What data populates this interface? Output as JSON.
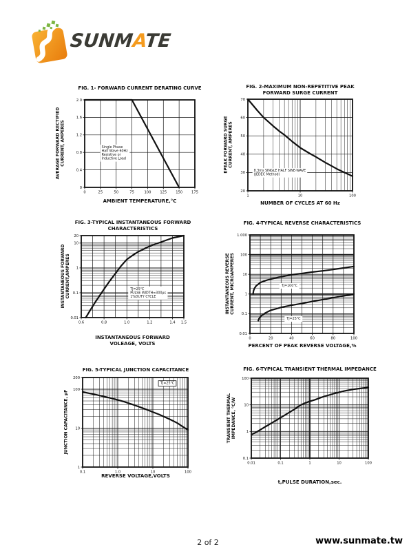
{
  "page": {
    "footer_page": "2 of 2",
    "footer_site": "www.sunmate.tw"
  },
  "logo": {
    "brand_prefix": "SUNM",
    "brand_accent": "A",
    "brand_suffix": "TE",
    "mark_gradient_start": "#F9B233",
    "mark_gradient_end": "#E87C0C",
    "dot_color": "#7DB642",
    "text_color": "#3B3B35",
    "accent_color": "#F59B1E"
  },
  "chart_data": [
    {
      "id": "fig1",
      "type": "line",
      "title": "FIG. 1- FORWARD CURRENT DERATING CURVE",
      "xlabel": "AMBIENT TEMPERATURE,°C",
      "ylabel": "AVERAGE FORWARD RECTIFIED CURRENT, AMPERES",
      "x": {
        "scale": "linear",
        "min": 0,
        "max": 175,
        "grid": [
          25,
          50,
          75,
          100,
          125,
          150
        ],
        "ticks": [
          {
            "v": 0,
            "l": "0"
          },
          {
            "v": 25,
            "l": "25"
          },
          {
            "v": 50,
            "l": "50"
          },
          {
            "v": 75,
            "l": "75"
          },
          {
            "v": 100,
            "l": "100"
          },
          {
            "v": 125,
            "l": "125"
          },
          {
            "v": 150,
            "l": "150"
          },
          {
            "v": 175,
            "l": "175"
          }
        ]
      },
      "y": {
        "scale": "linear",
        "min": 0,
        "max": 2,
        "grid": [
          0.4,
          0.8,
          1.2,
          1.6
        ],
        "ticks": [
          {
            "v": 0,
            "l": "0"
          },
          {
            "v": 0.4,
            "l": "0.4"
          },
          {
            "v": 0.8,
            "l": "0.8"
          },
          {
            "v": 1.2,
            "l": "1.2"
          },
          {
            "v": 1.6,
            "l": "1.6"
          },
          {
            "v": 2,
            "l": "2.0"
          }
        ]
      },
      "series": [
        {
          "name": "derating",
          "points": [
            [
              0,
              2
            ],
            [
              75,
              2
            ],
            [
              150,
              0
            ]
          ]
        }
      ],
      "annotations": [
        {
          "x": 27,
          "y": 0.9,
          "anchor": "start",
          "text": "Single Phase\nHalf Wave 60Hz\nResistive or\nInductive Load"
        }
      ]
    },
    {
      "id": "fig2",
      "type": "line",
      "title": "FIG. 2-MAXIMUM NON-REPETITIVE PEAK FORWARD SURGE CURRENT",
      "xlabel": "NUMBER OF CYCLES AT 60 Hz",
      "ylabel": "EPEAK FORWARD SURGE CURRENT, AMPERES",
      "x": {
        "scale": "log",
        "min": 1,
        "max": 100,
        "ticks": [
          {
            "v": 1,
            "l": "1"
          },
          {
            "v": 10,
            "l": "10"
          },
          {
            "v": 100,
            "l": "100"
          }
        ]
      },
      "y": {
        "scale": "linear",
        "min": 20,
        "max": 70,
        "grid": [
          30,
          40,
          50,
          60
        ],
        "ticks": [
          {
            "v": 20,
            "l": "20"
          },
          {
            "v": 30,
            "l": "30"
          },
          {
            "v": 40,
            "l": "40"
          },
          {
            "v": 50,
            "l": "50"
          },
          {
            "v": 60,
            "l": "60"
          },
          {
            "v": 70,
            "l": "70"
          }
        ]
      },
      "series": [
        {
          "name": "surge",
          "points": [
            [
              1,
              70
            ],
            [
              1.5,
              64
            ],
            [
              2,
              60
            ],
            [
              3,
              55.5
            ],
            [
              4,
              52.5
            ],
            [
              5,
              50.5
            ],
            [
              7,
              47
            ],
            [
              10,
              43.5
            ],
            [
              15,
              40.5
            ],
            [
              20,
              38.5
            ],
            [
              30,
              35.5
            ],
            [
              50,
              32
            ],
            [
              70,
              30
            ],
            [
              100,
              28
            ]
          ]
        }
      ],
      "annotations": [
        {
          "x": 1.3,
          "y": 30.5,
          "anchor": "start",
          "text": "8.3ms SINGLE HALF SINE-WAVE\n(JEDEC Method)"
        }
      ]
    },
    {
      "id": "fig3",
      "type": "line",
      "title": "FIG. 3-TYPICAL INSTANTANEOUS FORWARD CHARACTERISTICS",
      "xlabel": "INSTANTANEOUS FORWARD VOLEAGE, VOLTS",
      "ylabel": "INSTANTANEOUS FORWARD CURRENT,AMPERES",
      "x": {
        "scale": "linear",
        "min": 0.6,
        "max": 1.5,
        "grid": [
          0.7,
          0.8,
          0.9,
          1.0,
          1.1,
          1.2,
          1.3,
          1.4
        ],
        "ticks": [
          {
            "v": 0.6,
            "l": "0.6"
          },
          {
            "v": 0.8,
            "l": "0.8"
          },
          {
            "v": 1.0,
            "l": "1.0"
          },
          {
            "v": 1.2,
            "l": "1.2"
          },
          {
            "v": 1.4,
            "l": "1.4"
          },
          {
            "v": 1.5,
            "l": "1.5"
          }
        ]
      },
      "y": {
        "scale": "log",
        "min": 0.01,
        "max": 20,
        "ticks": [
          {
            "v": 0.01,
            "l": "0.01"
          },
          {
            "v": 0.1,
            "l": "0.1"
          },
          {
            "v": 1,
            "l": "1"
          },
          {
            "v": 10,
            "l": "10"
          },
          {
            "v": 20,
            "l": "20"
          }
        ]
      },
      "series": [
        {
          "name": "vf-if",
          "points": [
            [
              0.64,
              0.01
            ],
            [
              0.68,
              0.02
            ],
            [
              0.72,
              0.04
            ],
            [
              0.76,
              0.075
            ],
            [
              0.8,
              0.14
            ],
            [
              0.85,
              0.3
            ],
            [
              0.9,
              0.6
            ],
            [
              0.95,
              1.2
            ],
            [
              1.0,
              2.2
            ],
            [
              1.05,
              3.2
            ],
            [
              1.1,
              4.5
            ],
            [
              1.2,
              7.5
            ],
            [
              1.3,
              11
            ],
            [
              1.4,
              16
            ],
            [
              1.5,
              20
            ]
          ]
        }
      ],
      "annotations": [
        {
          "x": 1.03,
          "y": 0.13,
          "anchor": "start",
          "text": "TJ=25°C\nPULSE WIDTH=300μs\n1%DUTY CYCLE"
        }
      ]
    },
    {
      "id": "fig4",
      "type": "line",
      "title": "FIG. 4-TYPICAL REVERSE CHARACTERISTICS",
      "xlabel": "PERCENT OF PEAK REVERSE VOLTAGE,%",
      "ylabel": "INSTANTANEOUS REVERSE CURRENT, MICROAMPERES",
      "x": {
        "scale": "linear",
        "min": 0,
        "max": 100,
        "grid": [
          10,
          20,
          30,
          40,
          50,
          60,
          70,
          80,
          90
        ],
        "ticks": [
          {
            "v": 0,
            "l": "0"
          },
          {
            "v": 20,
            "l": "20"
          },
          {
            "v": 40,
            "l": "40"
          },
          {
            "v": 60,
            "l": "60"
          },
          {
            "v": 80,
            "l": "80"
          },
          {
            "v": 100,
            "l": "100"
          }
        ]
      },
      "y": {
        "scale": "log",
        "min": 0.01,
        "max": 1000,
        "emph": [
          1,
          100
        ],
        "ticks": [
          {
            "v": 0.01,
            "l": "0.01"
          },
          {
            "v": 0.1,
            "l": "0.1"
          },
          {
            "v": 1,
            "l": "1"
          },
          {
            "v": 10,
            "l": "10"
          },
          {
            "v": 100,
            "l": "100"
          },
          {
            "v": 1000,
            "l": "1.000"
          }
        ]
      },
      "series": [
        {
          "name": "TJ=100°C",
          "points": [
            [
              3,
              1
            ],
            [
              3.5,
              1.5
            ],
            [
              4.5,
              2
            ],
            [
              6,
              2.6
            ],
            [
              10,
              3.8
            ],
            [
              15,
              4.8
            ],
            [
              20,
              5.8
            ],
            [
              30,
              7.5
            ],
            [
              40,
              9.5
            ],
            [
              50,
              11
            ],
            [
              60,
              13
            ],
            [
              70,
              15
            ],
            [
              80,
              17.5
            ],
            [
              90,
              21
            ],
            [
              100,
              25
            ]
          ]
        },
        {
          "name": "TJ=25°C",
          "points": [
            [
              8,
              0.045
            ],
            [
              9,
              0.06
            ],
            [
              11,
              0.08
            ],
            [
              15,
              0.11
            ],
            [
              20,
              0.15
            ],
            [
              30,
              0.21
            ],
            [
              40,
              0.27
            ],
            [
              50,
              0.33
            ],
            [
              60,
              0.42
            ],
            [
              70,
              0.52
            ],
            [
              80,
              0.65
            ],
            [
              90,
              0.8
            ],
            [
              100,
              1.0
            ]
          ]
        }
      ],
      "annotations": [
        {
          "x": 38,
          "y": 2.4,
          "anchor": "middle",
          "text": "TJ=100°C"
        },
        {
          "x": 42,
          "y": 0.05,
          "anchor": "middle",
          "text": "TJ=25°C"
        }
      ]
    },
    {
      "id": "fig5",
      "type": "line",
      "title": "FIG. 5-TYPICAL JUNCTION CAPACITANCE",
      "xlabel": "REVERSE VOLTAGE,VOLTS",
      "ylabel": "JUNCTION CAPACITANCE, pF",
      "x": {
        "scale": "log",
        "min": 0.1,
        "max": 100,
        "ticks": [
          {
            "v": 0.1,
            "l": "0.1"
          },
          {
            "v": 1,
            "l": "1.0"
          },
          {
            "v": 10,
            "l": "10"
          },
          {
            "v": 100,
            "l": "100"
          }
        ]
      },
      "y": {
        "scale": "log",
        "min": 1,
        "max": 200,
        "ticks": [
          {
            "v": 1,
            "l": "1"
          },
          {
            "v": 10,
            "l": "10"
          },
          {
            "v": 100,
            "l": "100"
          },
          {
            "v": 200,
            "l": "200"
          }
        ]
      },
      "series": [
        {
          "name": "cj",
          "points": [
            [
              0.1,
              85
            ],
            [
              0.15,
              79
            ],
            [
              0.2,
              75
            ],
            [
              0.3,
              69
            ],
            [
              0.5,
              62
            ],
            [
              0.7,
              58
            ],
            [
              1,
              53
            ],
            [
              1.5,
              48
            ],
            [
              2,
              44
            ],
            [
              3,
              39
            ],
            [
              5,
              33
            ],
            [
              7,
              29.5
            ],
            [
              10,
              26
            ],
            [
              15,
              22.5
            ],
            [
              20,
              20
            ],
            [
              30,
              17
            ],
            [
              50,
              13.5
            ],
            [
              70,
              11
            ],
            [
              100,
              9
            ]
          ]
        }
      ],
      "annotations": [
        {
          "x": 26,
          "y": 135,
          "anchor": "middle",
          "box": true,
          "text": "TJ=25°C"
        }
      ]
    },
    {
      "id": "fig6",
      "type": "line",
      "title": "FIG. 6-TYPICAL TRANSIENT THERMAL IMPEDANCE",
      "xlabel": "t,PULSE DURATION,sec.",
      "ylabel": "TRANSIENT THERMAL IMPEDANCE, °C/W",
      "x": {
        "scale": "log",
        "min": 0.01,
        "max": 100,
        "emph": [
          1
        ],
        "ticks": [
          {
            "v": 0.01,
            "l": "0.01"
          },
          {
            "v": 0.1,
            "l": "0.1"
          },
          {
            "v": 1,
            "l": "1"
          },
          {
            "v": 10,
            "l": "10"
          },
          {
            "v": 100,
            "l": "100"
          }
        ]
      },
      "y": {
        "scale": "log",
        "min": 0.1,
        "max": 100,
        "ticks": [
          {
            "v": 0.1,
            "l": "0.1"
          },
          {
            "v": 1,
            "l": "1"
          },
          {
            "v": 10,
            "l": "10"
          },
          {
            "v": 100,
            "l": "100"
          }
        ]
      },
      "series": [
        {
          "name": "zth",
          "points": [
            [
              0.01,
              0.75
            ],
            [
              0.015,
              0.95
            ],
            [
              0.02,
              1.15
            ],
            [
              0.03,
              1.5
            ],
            [
              0.05,
              2.1
            ],
            [
              0.07,
              2.6
            ],
            [
              0.1,
              3.3
            ],
            [
              0.15,
              4.3
            ],
            [
              0.2,
              5.2
            ],
            [
              0.3,
              6.9
            ],
            [
              0.5,
              10
            ],
            [
              0.7,
              11.8
            ],
            [
              1,
              13.5
            ],
            [
              1.5,
              15.5
            ],
            [
              2,
              17.5
            ],
            [
              3,
              20.5
            ],
            [
              5,
              24
            ],
            [
              7,
              27
            ],
            [
              10,
              29.5
            ],
            [
              15,
              33
            ],
            [
              20,
              35
            ],
            [
              30,
              38
            ],
            [
              50,
              41
            ],
            [
              70,
              43
            ],
            [
              100,
              45
            ]
          ]
        }
      ],
      "annotations": []
    }
  ]
}
